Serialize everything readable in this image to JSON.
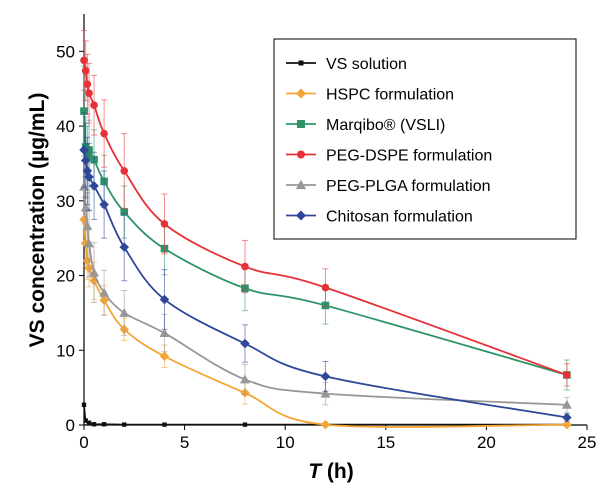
{
  "chart_data": {
    "type": "line",
    "title": "",
    "xlabel_italic": "T",
    "xlabel_rest": " (h)",
    "ylabel": "VS concentration (µg/mL)",
    "xlim": [
      0,
      25
    ],
    "ylim": [
      0,
      55
    ],
    "xticks": [
      "0",
      "5",
      "10",
      "15",
      "20",
      "25"
    ],
    "yticks": [
      "0",
      "10",
      "20",
      "30",
      "40",
      "50"
    ],
    "legend_position": "top-right",
    "grid": false,
    "series": [
      {
        "name": "VS solution",
        "color": "#111111",
        "marker": "square",
        "x": [
          0.0,
          0.083,
          0.25,
          0.5,
          1,
          2,
          4,
          8,
          12,
          24
        ],
        "y": [
          2.7,
          0.6,
          0.3,
          0.1,
          0.1,
          0.05,
          0.05,
          0.05,
          0.05,
          0.05
        ],
        "err": [
          0,
          0,
          0,
          0,
          0,
          0,
          0,
          0,
          0,
          0
        ]
      },
      {
        "name": "HSPC formulation",
        "color": "#f4a535",
        "marker": "diamond",
        "x": [
          0.0,
          0.083,
          0.167,
          0.25,
          0.5,
          1,
          2,
          4,
          8,
          12,
          24
        ],
        "y": [
          27.5,
          24.3,
          22.0,
          21.0,
          19.3,
          16.7,
          12.8,
          9.2,
          4.3,
          0.05,
          0.05
        ],
        "err": [
          3,
          3,
          2.5,
          2.5,
          2.5,
          2,
          1.5,
          1.5,
          1.5,
          0,
          0
        ]
      },
      {
        "name": "Marqibo® (VSLI)",
        "color": "#2e9467",
        "marker": "square",
        "x": [
          0.0,
          0.083,
          0.167,
          0.25,
          0.5,
          1,
          2,
          4,
          8,
          12,
          24
        ],
        "y": [
          42.0,
          37.2,
          36.0,
          36.8,
          35.5,
          32.6,
          28.5,
          23.6,
          18.3,
          16.0,
          6.7
        ],
        "err": [
          6,
          4,
          4,
          4,
          4,
          3.5,
          3.5,
          3.5,
          3,
          2.5,
          2
        ]
      },
      {
        "name": "PEG-DSPE formulation",
        "color": "#e53238",
        "marker": "circle",
        "x": [
          0.0,
          0.083,
          0.167,
          0.25,
          0.5,
          1,
          2,
          4,
          8,
          12,
          24
        ],
        "y": [
          48.8,
          47.4,
          45.6,
          44.4,
          42.8,
          39.0,
          34.0,
          26.9,
          21.2,
          18.4,
          6.7
        ],
        "err": [
          4,
          4,
          4,
          4,
          4,
          4.5,
          5,
          4,
          3.5,
          2.5,
          1.5
        ]
      },
      {
        "name": "PEG-PLGA formulation",
        "color": "#979797",
        "marker": "triangle",
        "x": [
          0.0,
          0.083,
          0.167,
          0.25,
          0.5,
          1,
          2,
          4,
          8,
          12,
          24
        ],
        "y": [
          31.9,
          29.1,
          26.6,
          24.3,
          20.4,
          17.7,
          15.0,
          12.3,
          6.1,
          4.2,
          2.7
        ],
        "err": [
          5,
          5,
          4.5,
          4.5,
          4,
          3,
          3,
          2.5,
          2,
          1.5,
          1
        ]
      },
      {
        "name": "Chitosan formulation",
        "color": "#2f479a",
        "marker": "diamond",
        "x": [
          0.0,
          0.083,
          0.167,
          0.25,
          0.5,
          1,
          2,
          4,
          8,
          12,
          24
        ],
        "y": [
          36.8,
          35.4,
          34.0,
          33.2,
          32.0,
          29.5,
          23.8,
          16.8,
          10.9,
          6.5,
          1.0
        ],
        "err": [
          5,
          5,
          4.5,
          4.5,
          4.5,
          4.5,
          4.5,
          4,
          2.5,
          2,
          0.5
        ]
      }
    ]
  }
}
